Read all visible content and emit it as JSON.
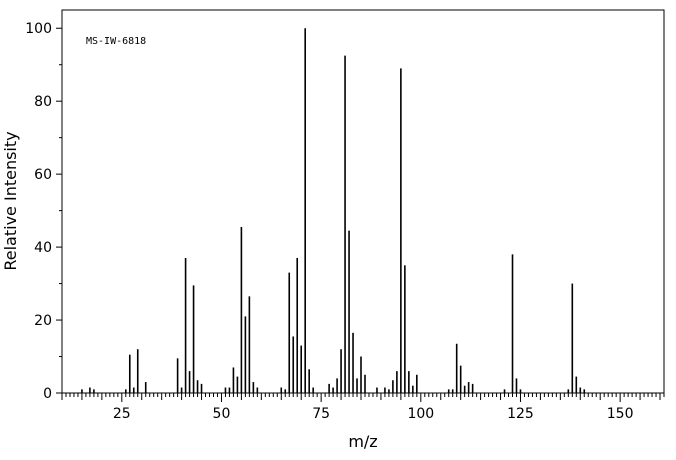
{
  "chart_data": {
    "type": "bar",
    "annotation": "MS-IW-6818",
    "xlabel": "m/z",
    "ylabel": "Relative Intensity",
    "xlim": [
      10,
      161
    ],
    "ylim": [
      0,
      105
    ],
    "x_ticks": [
      25,
      50,
      75,
      100,
      125,
      150
    ],
    "y_ticks": [
      0,
      20,
      40,
      60,
      80,
      100
    ],
    "grid": false,
    "colors": {
      "bar": "#000000",
      "axis": "#000000",
      "background": "#ffffff"
    },
    "x": [
      15,
      17,
      18,
      26,
      27,
      28,
      29,
      31,
      39,
      40,
      41,
      42,
      43,
      44,
      45,
      51,
      52,
      53,
      54,
      55,
      56,
      57,
      58,
      59,
      65,
      66,
      67,
      68,
      69,
      70,
      71,
      72,
      73,
      77,
      78,
      79,
      80,
      81,
      82,
      83,
      84,
      85,
      86,
      89,
      91,
      92,
      93,
      94,
      95,
      96,
      97,
      98,
      99,
      107,
      108,
      109,
      110,
      111,
      112,
      113,
      121,
      123,
      124,
      125,
      137,
      138,
      139,
      140,
      141
    ],
    "values": [
      1,
      1.5,
      1,
      1,
      10.5,
      1.5,
      12,
      3,
      9.5,
      1.5,
      37,
      6,
      29.5,
      3.5,
      2.5,
      1.5,
      1.5,
      7,
      4.5,
      45.5,
      21,
      26.5,
      3,
      1.5,
      1.5,
      1,
      33,
      15.5,
      37,
      13,
      100,
      6.5,
      1.5,
      2.5,
      1.5,
      4,
      12,
      92.5,
      44.5,
      16.5,
      4,
      10,
      5,
      1.5,
      1.5,
      1,
      3.5,
      6,
      89,
      35,
      6,
      2,
      5,
      1,
      1,
      13.5,
      7.5,
      2,
      3,
      2.5,
      1,
      38,
      4,
      1,
      1,
      30,
      4.5,
      1.5,
      1
    ]
  }
}
